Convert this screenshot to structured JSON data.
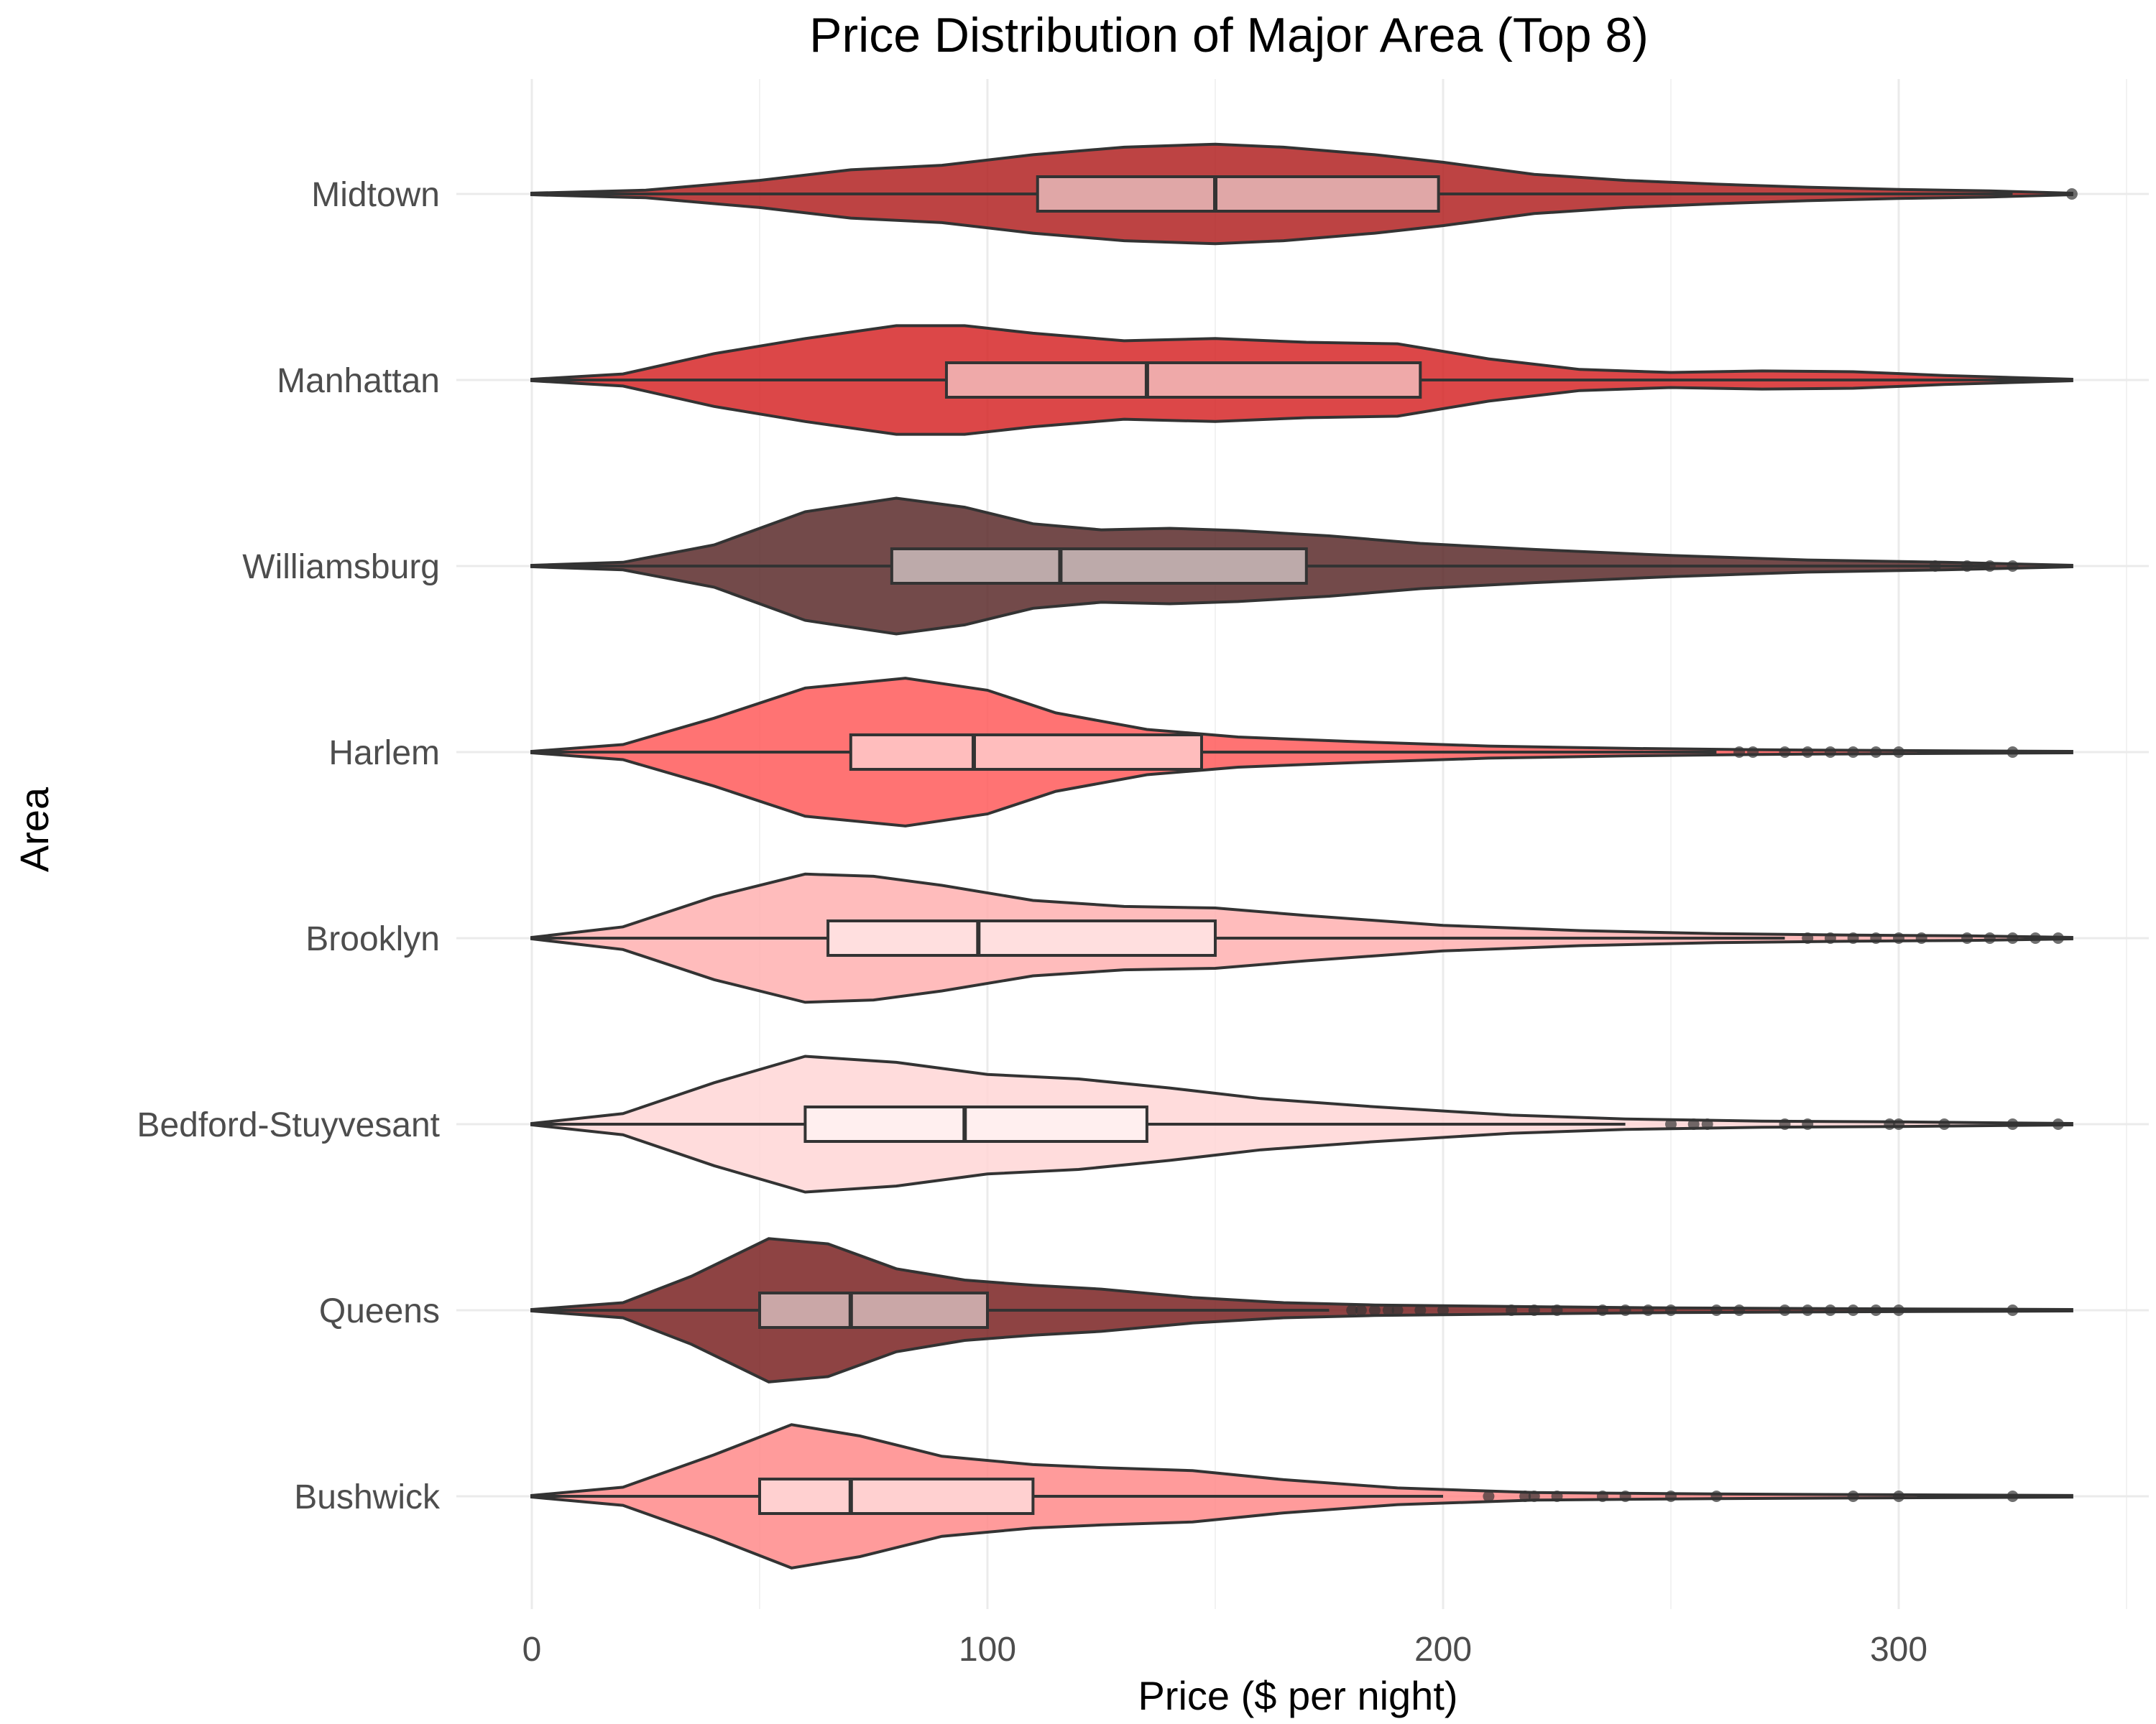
{
  "chart_data": {
    "type": "violin",
    "title": "Price Distribution of Major Area (Top 8)",
    "xlabel": "Price ($ per night)",
    "ylabel": "Area",
    "xlim": [
      0,
      350
    ],
    "xticks": [
      0,
      100,
      200,
      300
    ],
    "xtick_labels": [
      "0",
      "100",
      "200",
      "300"
    ],
    "grid": true,
    "legend": "none",
    "categories": [
      "Midtown",
      "Manhattan",
      "Williamsburg",
      "Harlem",
      "Brooklyn",
      "Bedford-Stuyvesant",
      "Queens",
      "Bushwick"
    ],
    "series": [
      {
        "name": "Midtown",
        "color": "#b22222",
        "box": {
          "q1": 111,
          "median": 150,
          "q3": 199,
          "whisker_low": 0,
          "whisker_high": 325
        },
        "outliers": [
          338
        ],
        "density": [
          [
            0,
            0.01
          ],
          [
            25,
            0.05
          ],
          [
            50,
            0.18
          ],
          [
            70,
            0.32
          ],
          [
            90,
            0.38
          ],
          [
            110,
            0.52
          ],
          [
            130,
            0.62
          ],
          [
            150,
            0.66
          ],
          [
            165,
            0.62
          ],
          [
            185,
            0.52
          ],
          [
            200,
            0.42
          ],
          [
            220,
            0.26
          ],
          [
            240,
            0.18
          ],
          [
            260,
            0.13
          ],
          [
            280,
            0.09
          ],
          [
            300,
            0.06
          ],
          [
            320,
            0.04
          ],
          [
            338,
            0.01
          ]
        ]
      },
      {
        "name": "Manhattan",
        "color": "#d62728",
        "box": {
          "q1": 91,
          "median": 135,
          "q3": 195,
          "whisker_low": 0,
          "whisker_high": 338
        },
        "outliers": [],
        "density": [
          [
            0,
            0.01
          ],
          [
            20,
            0.08
          ],
          [
            40,
            0.35
          ],
          [
            60,
            0.55
          ],
          [
            80,
            0.72
          ],
          [
            95,
            0.72
          ],
          [
            110,
            0.62
          ],
          [
            130,
            0.52
          ],
          [
            150,
            0.55
          ],
          [
            170,
            0.5
          ],
          [
            190,
            0.48
          ],
          [
            210,
            0.28
          ],
          [
            230,
            0.14
          ],
          [
            250,
            0.1
          ],
          [
            270,
            0.12
          ],
          [
            290,
            0.11
          ],
          [
            310,
            0.06
          ],
          [
            338,
            0.01
          ]
        ]
      },
      {
        "name": "Williamsburg",
        "color": "#5a2a2a",
        "box": {
          "q1": 79,
          "median": 116,
          "q3": 170,
          "whisker_low": 0,
          "whisker_high": 320
        },
        "outliers": [
          308,
          315,
          320,
          325
        ],
        "density": [
          [
            0,
            0.01
          ],
          [
            20,
            0.05
          ],
          [
            40,
            0.28
          ],
          [
            60,
            0.72
          ],
          [
            80,
            0.9
          ],
          [
            95,
            0.78
          ],
          [
            110,
            0.56
          ],
          [
            125,
            0.48
          ],
          [
            140,
            0.5
          ],
          [
            155,
            0.47
          ],
          [
            175,
            0.4
          ],
          [
            195,
            0.3
          ],
          [
            220,
            0.22
          ],
          [
            250,
            0.14
          ],
          [
            280,
            0.08
          ],
          [
            310,
            0.05
          ],
          [
            338,
            0.01
          ]
        ]
      },
      {
        "name": "Harlem",
        "color": "#ff5a5a",
        "box": {
          "q1": 70,
          "median": 97,
          "q3": 147,
          "whisker_low": 0,
          "whisker_high": 260
        },
        "outliers": [
          265,
          268,
          275,
          280,
          285,
          290,
          295,
          300,
          325
        ],
        "density": [
          [
            0,
            0.01
          ],
          [
            20,
            0.1
          ],
          [
            40,
            0.45
          ],
          [
            60,
            0.85
          ],
          [
            82,
            0.98
          ],
          [
            100,
            0.82
          ],
          [
            115,
            0.52
          ],
          [
            135,
            0.3
          ],
          [
            155,
            0.2
          ],
          [
            180,
            0.14
          ],
          [
            210,
            0.08
          ],
          [
            240,
            0.05
          ],
          [
            270,
            0.03
          ],
          [
            300,
            0.02
          ],
          [
            338,
            0.01
          ]
        ]
      },
      {
        "name": "Brooklyn",
        "color": "#ffb0b0",
        "box": {
          "q1": 65,
          "median": 98,
          "q3": 150,
          "whisker_low": 0,
          "whisker_high": 275
        },
        "outliers": [
          280,
          285,
          290,
          295,
          300,
          305,
          315,
          320,
          325,
          330,
          335
        ],
        "density": [
          [
            0,
            0.01
          ],
          [
            20,
            0.15
          ],
          [
            40,
            0.55
          ],
          [
            60,
            0.85
          ],
          [
            75,
            0.82
          ],
          [
            90,
            0.7
          ],
          [
            110,
            0.5
          ],
          [
            130,
            0.42
          ],
          [
            150,
            0.4
          ],
          [
            170,
            0.3
          ],
          [
            200,
            0.17
          ],
          [
            230,
            0.1
          ],
          [
            260,
            0.06
          ],
          [
            290,
            0.04
          ],
          [
            315,
            0.03
          ],
          [
            338,
            0.01
          ]
        ]
      },
      {
        "name": "Bedford-Stuyvesant",
        "color": "#ffd6d6",
        "box": {
          "q1": 60,
          "median": 95,
          "q3": 135,
          "whisker_low": 0,
          "whisker_high": 240
        },
        "outliers": [
          250,
          255,
          258,
          275,
          280,
          298,
          300,
          310,
          325,
          335
        ],
        "density": [
          [
            0,
            0.01
          ],
          [
            20,
            0.14
          ],
          [
            40,
            0.55
          ],
          [
            60,
            0.9
          ],
          [
            80,
            0.82
          ],
          [
            100,
            0.66
          ],
          [
            120,
            0.6
          ],
          [
            140,
            0.48
          ],
          [
            160,
            0.34
          ],
          [
            185,
            0.23
          ],
          [
            215,
            0.12
          ],
          [
            240,
            0.07
          ],
          [
            270,
            0.04
          ],
          [
            300,
            0.03
          ],
          [
            338,
            0.01
          ]
        ]
      },
      {
        "name": "Queens",
        "color": "#7a2222",
        "box": {
          "q1": 50,
          "median": 70,
          "q3": 100,
          "whisker_low": 0,
          "whisker_high": 175
        },
        "outliers": [
          180,
          182,
          185,
          188,
          190,
          195,
          200,
          215,
          220,
          225,
          235,
          240,
          245,
          250,
          260,
          265,
          275,
          280,
          285,
          290,
          295,
          300,
          325
        ],
        "density": [
          [
            0,
            0.01
          ],
          [
            20,
            0.1
          ],
          [
            35,
            0.45
          ],
          [
            52,
            0.95
          ],
          [
            65,
            0.88
          ],
          [
            80,
            0.55
          ],
          [
            95,
            0.4
          ],
          [
            110,
            0.33
          ],
          [
            125,
            0.28
          ],
          [
            145,
            0.17
          ],
          [
            165,
            0.1
          ],
          [
            185,
            0.07
          ],
          [
            215,
            0.05
          ],
          [
            250,
            0.03
          ],
          [
            290,
            0.02
          ],
          [
            338,
            0.01
          ]
        ]
      },
      {
        "name": "Bushwick",
        "color": "#ff8a8a",
        "box": {
          "q1": 50,
          "median": 70,
          "q3": 110,
          "whisker_low": 0,
          "whisker_high": 200
        },
        "outliers": [
          210,
          218,
          220,
          225,
          235,
          240,
          250,
          260,
          290,
          300,
          325
        ],
        "density": [
          [
            0,
            0.01
          ],
          [
            20,
            0.12
          ],
          [
            40,
            0.55
          ],
          [
            57,
            0.95
          ],
          [
            72,
            0.8
          ],
          [
            90,
            0.53
          ],
          [
            110,
            0.42
          ],
          [
            125,
            0.38
          ],
          [
            145,
            0.34
          ],
          [
            165,
            0.22
          ],
          [
            190,
            0.11
          ],
          [
            220,
            0.05
          ],
          [
            260,
            0.03
          ],
          [
            300,
            0.02
          ],
          [
            338,
            0.01
          ]
        ]
      }
    ]
  }
}
